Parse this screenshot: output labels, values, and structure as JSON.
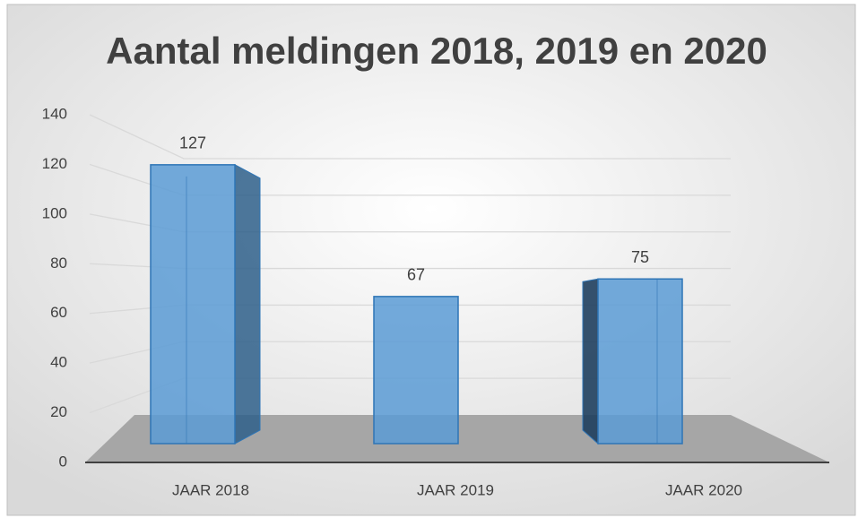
{
  "chart_data": {
    "type": "bar3d",
    "title": "Aantal meldingen 2018, 2019 en 2020",
    "categories": [
      "JAAR 2018",
      "JAAR 2019",
      "JAAR 2020"
    ],
    "values": [
      127,
      67,
      75
    ],
    "color": "#5b9bd5",
    "ylim": [
      0,
      140
    ],
    "yticks": [
      0,
      20,
      40,
      60,
      80,
      100,
      120,
      140
    ],
    "grid": true
  }
}
